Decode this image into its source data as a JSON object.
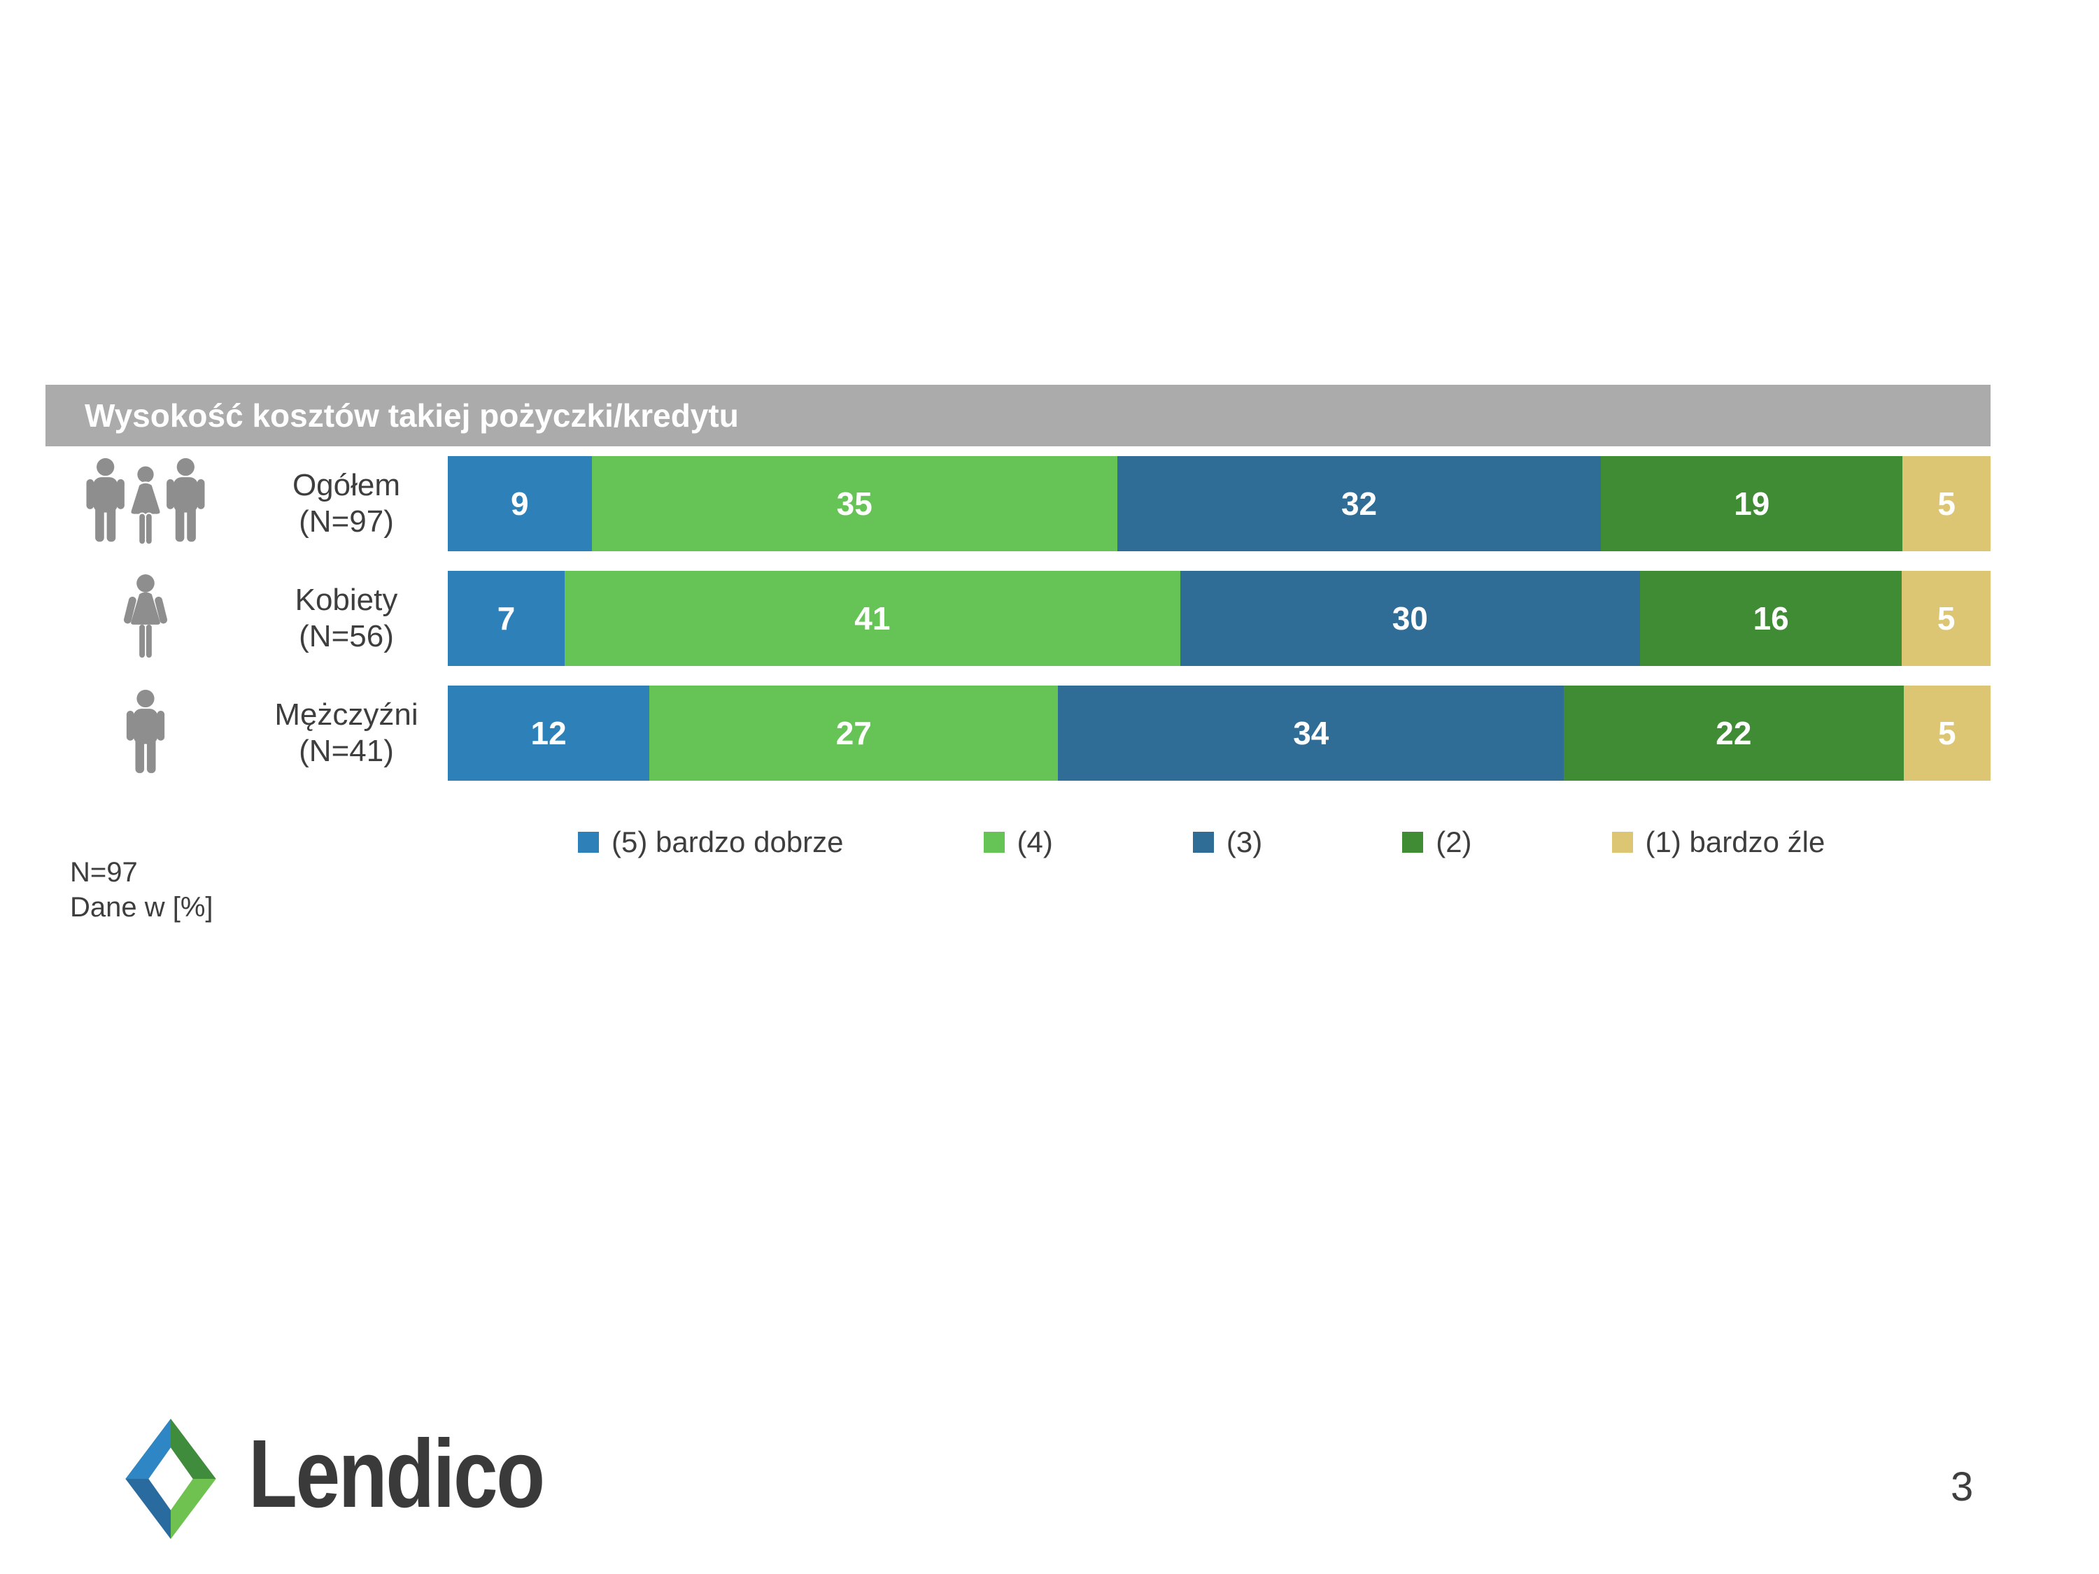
{
  "title_bar": {
    "label": "Wysokość kosztów takiej pożyczki/kredytu"
  },
  "footnote": {
    "line1": "N=97",
    "line2": "Dane w [%]"
  },
  "logo": {
    "brand": "Lendico"
  },
  "page_number": "3",
  "colors": {
    "title_bar_bg": "#ABABAB",
    "title_bar_text": "#FFFFFF",
    "body_text": "#3E3E3E",
    "icon_gray": "#8E8E8E",
    "value_label_text": "#FFFFFF"
  },
  "chart_data": {
    "type": "bar",
    "subtype": "horizontal-stacked",
    "unit": "percent",
    "title": "Wysokość kosztów takiej pożyczki/kredytu",
    "categories": [
      "Ogółem (N=97)",
      "Kobiety (N=56)",
      "Mężczyźni (N=41)"
    ],
    "category_labels": [
      [
        "Ogółem",
        "(N=97)"
      ],
      [
        "Kobiety",
        "(N=56)"
      ],
      [
        "Mężczyźni",
        "(N=41)"
      ]
    ],
    "category_icons": [
      "people-group-icon",
      "woman-icon",
      "man-icon"
    ],
    "series": [
      {
        "name": "(5) bardzo dobrze",
        "color": "#2E80B9",
        "values": [
          9,
          7,
          12
        ]
      },
      {
        "name": "(4)",
        "color": "#66C355",
        "values": [
          35,
          41,
          27
        ]
      },
      {
        "name": "(3)",
        "color": "#2F6C96",
        "values": [
          32,
          30,
          34
        ]
      },
      {
        "name": "(2)",
        "color": "#3F8C35",
        "values": [
          19,
          16,
          22
        ]
      },
      {
        "name": "(1) bardzo źle",
        "color": "#DDC673",
        "values": [
          5,
          5,
          5
        ]
      }
    ],
    "xlim": [
      0,
      100
    ],
    "grid": false,
    "legend_position": "bottom",
    "value_labels": "inside, white, bold",
    "annotations": [
      "N=97",
      "Dane w [%]"
    ]
  }
}
